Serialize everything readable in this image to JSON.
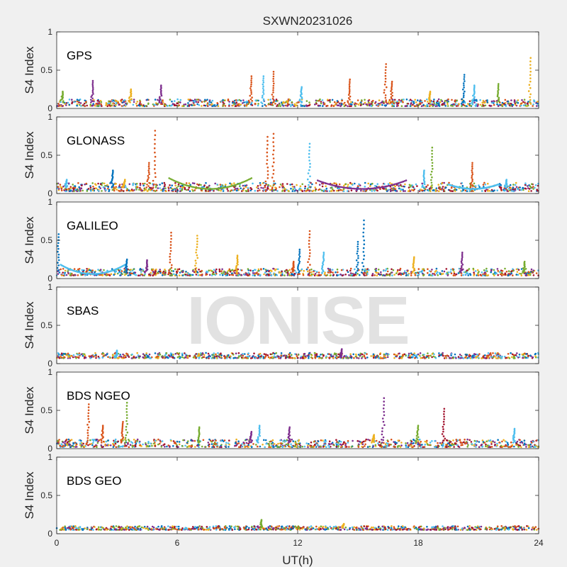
{
  "figure": {
    "title": "SXWN20231026",
    "xlabel": "UT(h)",
    "watermark": "IONISE"
  },
  "colors": {
    "background": "#f0f0f0",
    "axes_face": "#ffffff",
    "series": [
      "#0072bd",
      "#d95319",
      "#edb120",
      "#7e2f8e",
      "#77ac30",
      "#4dbeee",
      "#a2142f"
    ]
  },
  "chart_data": [
    {
      "type": "scatter",
      "panel": "GPS",
      "ylabel": "S4 Index",
      "xlim": [
        0,
        24
      ],
      "ylim": [
        0,
        1
      ],
      "xticks": [
        0,
        6,
        12,
        18,
        24
      ],
      "yticks": [
        0,
        0.5,
        1
      ],
      "baseline_range": [
        0.03,
        0.12
      ],
      "spikes": [
        {
          "x": 0.3,
          "y": 0.22,
          "c": 4
        },
        {
          "x": 1.8,
          "y": 0.36,
          "c": 3
        },
        {
          "x": 3.7,
          "y": 0.25,
          "c": 2
        },
        {
          "x": 5.2,
          "y": 0.3,
          "c": 3
        },
        {
          "x": 9.7,
          "y": 0.42,
          "c": 1
        },
        {
          "x": 10.3,
          "y": 0.42,
          "c": 5
        },
        {
          "x": 10.8,
          "y": 0.48,
          "c": 1
        },
        {
          "x": 14.6,
          "y": 0.38,
          "c": 1
        },
        {
          "x": 16.4,
          "y": 0.58,
          "c": 1
        },
        {
          "x": 16.7,
          "y": 0.35,
          "c": 1
        },
        {
          "x": 18.6,
          "y": 0.22,
          "c": 2
        },
        {
          "x": 20.3,
          "y": 0.44,
          "c": 0
        },
        {
          "x": 20.8,
          "y": 0.3,
          "c": 5
        },
        {
          "x": 22.0,
          "y": 0.32,
          "c": 4
        },
        {
          "x": 23.6,
          "y": 0.66,
          "c": 2
        },
        {
          "x": 12.2,
          "y": 0.28,
          "c": 5
        }
      ]
    },
    {
      "type": "scatter",
      "panel": "GLONASS",
      "ylabel": "S4 Index",
      "xlim": [
        0,
        24
      ],
      "ylim": [
        0,
        1
      ],
      "xticks": [
        0,
        6,
        12,
        18,
        24
      ],
      "yticks": [
        0,
        0.5,
        1
      ],
      "baseline_range": [
        0.03,
        0.14
      ],
      "arcs": [
        {
          "x0": 5.6,
          "x1": 9.7,
          "y_end": 0.2,
          "c": 4
        },
        {
          "x0": 13.0,
          "x1": 17.4,
          "y_end": 0.17,
          "c": 3
        },
        {
          "x0": 19.5,
          "x1": 22.0,
          "y_end": 0.12,
          "c": 5
        }
      ],
      "spikes": [
        {
          "x": 0.5,
          "y": 0.18,
          "c": 5
        },
        {
          "x": 2.8,
          "y": 0.3,
          "c": 0
        },
        {
          "x": 3.4,
          "y": 0.18,
          "c": 2
        },
        {
          "x": 4.6,
          "y": 0.4,
          "c": 1
        },
        {
          "x": 4.9,
          "y": 0.82,
          "c": 1
        },
        {
          "x": 10.5,
          "y": 0.74,
          "c": 1
        },
        {
          "x": 10.8,
          "y": 0.78,
          "c": 1
        },
        {
          "x": 12.6,
          "y": 0.65,
          "c": 5
        },
        {
          "x": 18.3,
          "y": 0.3,
          "c": 5
        },
        {
          "x": 18.7,
          "y": 0.6,
          "c": 4
        },
        {
          "x": 20.7,
          "y": 0.4,
          "c": 1
        },
        {
          "x": 22.4,
          "y": 0.18,
          "c": 5
        }
      ]
    },
    {
      "type": "scatter",
      "panel": "GALILEO",
      "ylabel": "S4 Index",
      "xlim": [
        0,
        24
      ],
      "ylim": [
        0,
        1
      ],
      "xticks": [
        0,
        6,
        12,
        18,
        24
      ],
      "yticks": [
        0,
        0.5,
        1
      ],
      "baseline_range": [
        0.04,
        0.13
      ],
      "arcs": [
        {
          "x0": 0.2,
          "x1": 3.4,
          "y_end": 0.18,
          "c": 5
        }
      ],
      "spikes": [
        {
          "x": 0.1,
          "y": 0.58,
          "c": 0
        },
        {
          "x": 3.5,
          "y": 0.25,
          "c": 0
        },
        {
          "x": 4.5,
          "y": 0.24,
          "c": 3
        },
        {
          "x": 5.7,
          "y": 0.6,
          "c": 1
        },
        {
          "x": 7.0,
          "y": 0.56,
          "c": 2
        },
        {
          "x": 9.0,
          "y": 0.3,
          "c": 2
        },
        {
          "x": 12.1,
          "y": 0.38,
          "c": 0
        },
        {
          "x": 12.6,
          "y": 0.62,
          "c": 1
        },
        {
          "x": 13.3,
          "y": 0.34,
          "c": 5
        },
        {
          "x": 15.0,
          "y": 0.48,
          "c": 0
        },
        {
          "x": 15.3,
          "y": 0.76,
          "c": 0
        },
        {
          "x": 17.8,
          "y": 0.28,
          "c": 2
        },
        {
          "x": 20.2,
          "y": 0.34,
          "c": 3
        },
        {
          "x": 23.3,
          "y": 0.22,
          "c": 4
        },
        {
          "x": 11.8,
          "y": 0.22,
          "c": 1
        }
      ]
    },
    {
      "type": "scatter",
      "panel": "SBAS",
      "ylabel": "S4 Index",
      "xlim": [
        0,
        24
      ],
      "ylim": [
        0,
        1
      ],
      "xticks": [
        0,
        6,
        12,
        18,
        24
      ],
      "yticks": [
        0,
        0.5,
        1
      ],
      "baseline_range": [
        0.07,
        0.14
      ],
      "spikes": [
        {
          "x": 14.2,
          "y": 0.19,
          "c": 3
        },
        {
          "x": 3.0,
          "y": 0.17,
          "c": 5
        }
      ]
    },
    {
      "type": "scatter",
      "panel": "BDS NGEO",
      "ylabel": "S4 Index",
      "xlim": [
        0,
        24
      ],
      "ylim": [
        0,
        1
      ],
      "xticks": [
        0,
        6,
        12,
        18,
        24
      ],
      "yticks": [
        0,
        0.5,
        1
      ],
      "baseline_range": [
        0.02,
        0.12
      ],
      "spikes": [
        {
          "x": 1.6,
          "y": 0.58,
          "c": 1
        },
        {
          "x": 2.3,
          "y": 0.3,
          "c": 1
        },
        {
          "x": 3.5,
          "y": 0.6,
          "c": 4
        },
        {
          "x": 3.3,
          "y": 0.35,
          "c": 1
        },
        {
          "x": 7.1,
          "y": 0.28,
          "c": 4
        },
        {
          "x": 9.7,
          "y": 0.22,
          "c": 3
        },
        {
          "x": 10.1,
          "y": 0.3,
          "c": 5
        },
        {
          "x": 11.6,
          "y": 0.28,
          "c": 3
        },
        {
          "x": 16.3,
          "y": 0.66,
          "c": 3
        },
        {
          "x": 18.0,
          "y": 0.3,
          "c": 4
        },
        {
          "x": 19.3,
          "y": 0.52,
          "c": 6
        },
        {
          "x": 22.8,
          "y": 0.26,
          "c": 5
        },
        {
          "x": 15.8,
          "y": 0.18,
          "c": 2
        }
      ]
    },
    {
      "type": "scatter",
      "panel": "BDS GEO",
      "ylabel": "S4 Index",
      "xlim": [
        0,
        24
      ],
      "ylim": [
        0,
        1
      ],
      "xticks": [
        0,
        6,
        12,
        18,
        24
      ],
      "yticks": [
        0,
        0.5,
        1
      ],
      "baseline_range": [
        0.05,
        0.1
      ],
      "spikes": [
        {
          "x": 10.2,
          "y": 0.18,
          "c": 4
        },
        {
          "x": 14.3,
          "y": 0.13,
          "c": 2
        }
      ]
    }
  ]
}
